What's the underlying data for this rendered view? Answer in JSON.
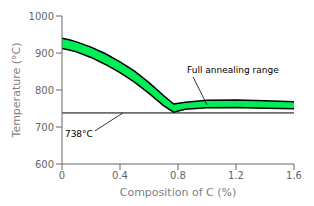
{
  "chart_data": {
    "type": "band",
    "xlabel": "Composition of C (%)",
    "ylabel": "Temperature (°C)",
    "x": [
      0.0,
      0.05,
      0.1,
      0.2,
      0.3,
      0.4,
      0.5,
      0.6,
      0.7,
      0.77,
      0.85,
      1.0,
      1.2,
      1.4,
      1.6
    ],
    "series": [
      {
        "values": [
          940,
          936,
          930,
          916,
          898,
          876,
          851,
          820,
          785,
          762,
          767,
          772,
          773,
          771,
          768
        ],
        "color": "#000000"
      },
      {
        "values": [
          912,
          908,
          903,
          888,
          869,
          847,
          821,
          791,
          758,
          740,
          748,
          752,
          753,
          751,
          749
        ],
        "color": "#000000"
      }
    ],
    "color": "#00ee55",
    "xlim": [
      0,
      1.6
    ],
    "ylim": [
      600,
      1000
    ],
    "xticks": [
      0,
      0.4,
      0.8,
      1.2,
      1.6
    ],
    "yticks": [
      600,
      700,
      800,
      900,
      1000
    ],
    "reference_line": {
      "y": 738,
      "label": "738°C",
      "color": "#000000",
      "x": 0.42
    },
    "annotations": [
      {
        "text": "Full annealing range",
        "x": 1.0,
        "y": 760
      }
    ],
    "grid": false
  }
}
